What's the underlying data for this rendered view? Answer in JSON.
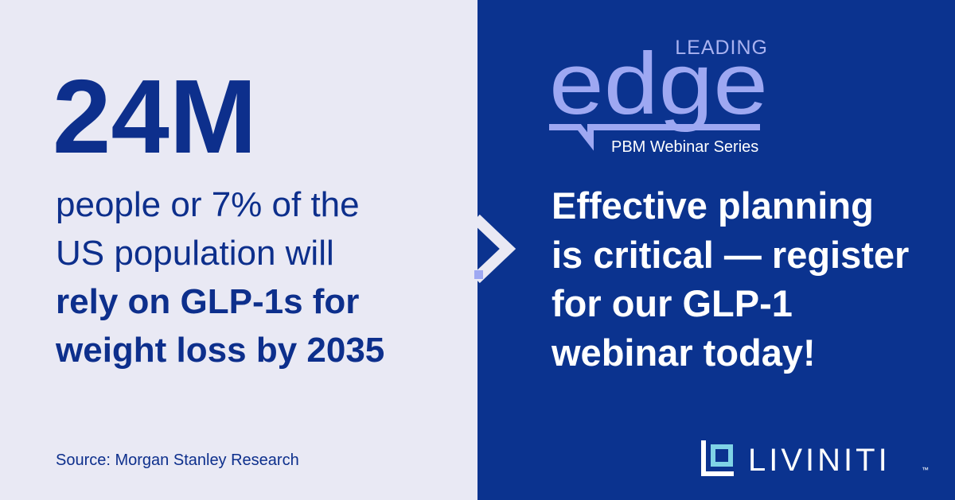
{
  "stat": {
    "number": "24M",
    "lines_regular": [
      "people or 7% of the",
      "US population will"
    ],
    "lines_bold": [
      "rely on GLP-1s for",
      "weight loss by 2035"
    ],
    "source": "Source: Morgan Stanley Research"
  },
  "logo": {
    "top": "LEADING",
    "word": "edge",
    "subtitle": "PBM Webinar Series"
  },
  "cta": {
    "lines": [
      "Effective planning",
      "is critical — register",
      "for our GLP-1",
      "webinar today!"
    ]
  },
  "brand": {
    "name": "LIVINITI",
    "mark": "™"
  }
}
